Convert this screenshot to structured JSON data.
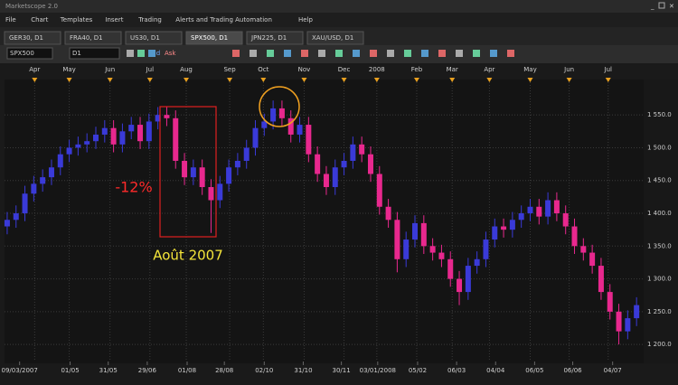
{
  "window": {
    "title": "Marketscope 2.0"
  },
  "menu": [
    "File",
    "Chart",
    "Templates",
    "Insert",
    "Trading",
    "Alerts and Trading Automation",
    "Help"
  ],
  "tabs": [
    "GER30, D1",
    "FRA40, D1",
    "US30, D1",
    "SPX500, D1",
    "JPN225, D1",
    "XAU/USD, D1"
  ],
  "toolbar": {
    "symbol": "SPX500",
    "timeframe": "D1",
    "bid": "Bid",
    "ask": "Ask"
  },
  "chart_data": {
    "type": "candlestick",
    "up_color": "#3a3ad8",
    "down_color": "#e8288e",
    "xlim": [
      -0.3,
      71.8
    ],
    "ylim": [
      1174,
      1604
    ],
    "yticks": [
      {
        "value": 1550,
        "label": "1 550.0"
      },
      {
        "value": 1500,
        "label": "1 500.0"
      },
      {
        "value": 1450,
        "label": "1 450.0"
      },
      {
        "value": 1400,
        "label": "1 400.0"
      },
      {
        "value": 1350,
        "label": "1 350.0"
      },
      {
        "value": 1300,
        "label": "1 300.0"
      },
      {
        "value": 1250,
        "label": "1 250.0"
      },
      {
        "value": 1200,
        "label": "1 200.0"
      }
    ],
    "xticks": [
      {
        "value": 1.4,
        "label": "09/03/2007"
      },
      {
        "value": 7.1,
        "label": "01/05"
      },
      {
        "value": 11.4,
        "label": "31/05"
      },
      {
        "value": 15.8,
        "label": "29/06"
      },
      {
        "value": 20.3,
        "label": "01/08"
      },
      {
        "value": 24.5,
        "label": "28/08"
      },
      {
        "value": 29,
        "label": "02/10"
      },
      {
        "value": 33.4,
        "label": "31/10"
      },
      {
        "value": 37.7,
        "label": "30/11"
      },
      {
        "value": 41.8,
        "label": "03/01/2008"
      },
      {
        "value": 46.3,
        "label": "05/02"
      },
      {
        "value": 50.7,
        "label": "06/03"
      },
      {
        "value": 55.1,
        "label": "04/04"
      },
      {
        "value": 59.5,
        "label": "06/05"
      },
      {
        "value": 63.8,
        "label": "06/06"
      },
      {
        "value": 68.3,
        "label": "04/07"
      }
    ],
    "month_ticks": [
      {
        "value": 3.1,
        "label": "Apr"
      },
      {
        "value": 7,
        "label": "May"
      },
      {
        "value": 11.6,
        "label": "Jun"
      },
      {
        "value": 16.1,
        "label": "Jul"
      },
      {
        "value": 20.2,
        "label": "Aug"
      },
      {
        "value": 25.1,
        "label": "Sep"
      },
      {
        "value": 28.9,
        "label": "Oct"
      },
      {
        "value": 33.5,
        "label": "Nov"
      },
      {
        "value": 38,
        "label": "Dec"
      },
      {
        "value": 41.7,
        "label": "2008"
      },
      {
        "value": 46.2,
        "label": "Feb"
      },
      {
        "value": 50.2,
        "label": "Mar"
      },
      {
        "value": 54.4,
        "label": "Apr"
      },
      {
        "value": 59,
        "label": "May"
      },
      {
        "value": 63.4,
        "label": "Jun"
      },
      {
        "value": 67.8,
        "label": "Jul"
      }
    ],
    "open": [
      1380,
      1390,
      1400,
      1430,
      1445,
      1455,
      1470,
      1490,
      1500,
      1505,
      1510,
      1520,
      1530,
      1505,
      1525,
      1535,
      1510,
      1540,
      1550,
      1545,
      1480,
      1455,
      1470,
      1440,
      1420,
      1445,
      1470,
      1480,
      1500,
      1530,
      1540,
      1560,
      1545,
      1520,
      1535,
      1490,
      1460,
      1440,
      1470,
      1480,
      1505,
      1490,
      1460,
      1410,
      1390,
      1330,
      1360,
      1385,
      1350,
      1340,
      1330,
      1300,
      1280,
      1320,
      1330,
      1360,
      1380,
      1375,
      1390,
      1400,
      1410,
      1395,
      1420,
      1400,
      1380,
      1350,
      1340,
      1320,
      1280,
      1250,
      1220,
      1240
    ],
    "high": [
      1402,
      1412,
      1442,
      1457,
      1467,
      1482,
      1502,
      1512,
      1517,
      1522,
      1532,
      1542,
      1542,
      1537,
      1547,
      1547,
      1552,
      1562,
      1562,
      1557,
      1492,
      1482,
      1482,
      1452,
      1457,
      1482,
      1492,
      1512,
      1542,
      1552,
      1572,
      1572,
      1557,
      1547,
      1547,
      1502,
      1472,
      1482,
      1492,
      1517,
      1517,
      1502,
      1472,
      1422,
      1402,
      1372,
      1397,
      1397,
      1362,
      1352,
      1342,
      1312,
      1332,
      1342,
      1372,
      1392,
      1392,
      1402,
      1412,
      1422,
      1422,
      1432,
      1432,
      1412,
      1392,
      1362,
      1352,
      1332,
      1292,
      1262,
      1252,
      1272
    ],
    "low": [
      1368,
      1378,
      1388,
      1418,
      1433,
      1443,
      1458,
      1478,
      1488,
      1493,
      1498,
      1508,
      1493,
      1493,
      1513,
      1498,
      1498,
      1528,
      1533,
      1468,
      1443,
      1443,
      1428,
      1370,
      1408,
      1433,
      1458,
      1468,
      1488,
      1518,
      1528,
      1533,
      1508,
      1508,
      1478,
      1448,
      1428,
      1428,
      1458,
      1468,
      1478,
      1448,
      1398,
      1378,
      1310,
      1318,
      1348,
      1338,
      1328,
      1318,
      1288,
      1260,
      1268,
      1308,
      1318,
      1348,
      1363,
      1363,
      1378,
      1388,
      1383,
      1383,
      1388,
      1368,
      1338,
      1328,
      1308,
      1268,
      1238,
      1200,
      1208,
      1228
    ],
    "close": [
      1390,
      1400,
      1430,
      1445,
      1455,
      1470,
      1490,
      1500,
      1505,
      1510,
      1520,
      1530,
      1505,
      1525,
      1535,
      1510,
      1540,
      1550,
      1545,
      1480,
      1455,
      1470,
      1440,
      1420,
      1445,
      1470,
      1480,
      1500,
      1530,
      1540,
      1560,
      1545,
      1520,
      1535,
      1490,
      1460,
      1440,
      1470,
      1480,
      1505,
      1490,
      1460,
      1410,
      1390,
      1330,
      1360,
      1385,
      1350,
      1340,
      1330,
      1300,
      1280,
      1320,
      1330,
      1360,
      1380,
      1375,
      1390,
      1400,
      1410,
      1395,
      1420,
      1400,
      1380,
      1350,
      1340,
      1320,
      1280,
      1250,
      1220,
      1240,
      1260
    ],
    "annotations": [
      "-12%",
      "Août 2007"
    ]
  }
}
